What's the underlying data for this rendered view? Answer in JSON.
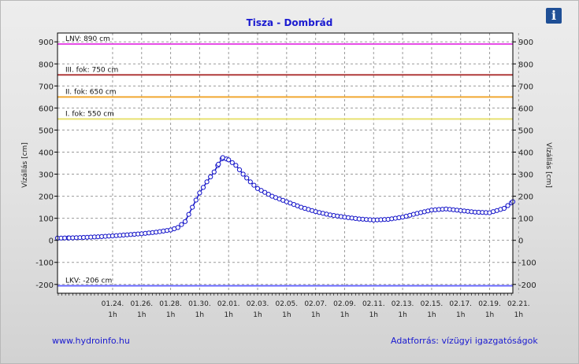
{
  "header": {
    "title": "Tisza - Dombrád",
    "info_icon": "i"
  },
  "footer": {
    "left": "www.hydroinfo.hu",
    "right": "Adatforrás: vízügyi igazgatóságok"
  },
  "chart_data": {
    "type": "line",
    "title": "Tisza - Dombrád",
    "ylabel": "Vízállás [cm]",
    "ylabel_right": "Vízállás [cm]",
    "ylim": [
      -240,
      940
    ],
    "yticks": [
      -200,
      -100,
      0,
      100,
      200,
      300,
      400,
      500,
      600,
      700,
      800,
      900
    ],
    "xlim": [
      -3.8,
      27.6
    ],
    "xticks": [
      {
        "label": "01.24.",
        "sub": "1h"
      },
      {
        "label": "01.26.",
        "sub": "1h"
      },
      {
        "label": "01.28.",
        "sub": "1h"
      },
      {
        "label": "01.30.",
        "sub": "1h"
      },
      {
        "label": "02.01.",
        "sub": "1h"
      },
      {
        "label": "02.03.",
        "sub": "1h"
      },
      {
        "label": "02.05.",
        "sub": "1h"
      },
      {
        "label": "02.07.",
        "sub": "1h"
      },
      {
        "label": "02.09.",
        "sub": "1h"
      },
      {
        "label": "02.11.",
        "sub": "1h"
      },
      {
        "label": "02.13.",
        "sub": "1h"
      },
      {
        "label": "02.15.",
        "sub": "1h"
      },
      {
        "label": "02.17.",
        "sub": "1h"
      },
      {
        "label": "02.19.",
        "sub": "1h"
      },
      {
        "label": "02.21.",
        "sub": "1h"
      }
    ],
    "grid": true,
    "reference_lines": [
      {
        "label": "LNV: 890 cm",
        "value": 890,
        "color": "#e64ce6"
      },
      {
        "label": "III. fok: 750 cm",
        "value": 750,
        "color": "#b03a3a"
      },
      {
        "label": "II. fok: 650 cm",
        "value": 650,
        "color": "#f0a830"
      },
      {
        "label": "I. fok: 550 cm",
        "value": 550,
        "color": "#e8e070"
      },
      {
        "label": "LKV: -206 cm",
        "value": -206,
        "color": "#6a6aff"
      }
    ],
    "series": [
      {
        "color": "#1010c8",
        "points": [
          [
            -3.8,
            10
          ],
          [
            -3,
            11
          ],
          [
            -2,
            13
          ],
          [
            -1,
            16
          ],
          [
            0,
            20
          ],
          [
            1,
            25
          ],
          [
            2,
            30
          ],
          [
            3,
            37
          ],
          [
            4,
            47
          ],
          [
            4.5,
            58
          ],
          [
            5,
            85
          ],
          [
            5.5,
            150
          ],
          [
            6,
            215
          ],
          [
            6.5,
            265
          ],
          [
            7,
            310
          ],
          [
            7.3,
            345
          ],
          [
            7.6,
            375
          ],
          [
            8,
            365
          ],
          [
            8.5,
            340
          ],
          [
            9,
            300
          ],
          [
            9.5,
            265
          ],
          [
            10,
            235
          ],
          [
            11,
            200
          ],
          [
            12,
            175
          ],
          [
            13,
            150
          ],
          [
            14,
            130
          ],
          [
            15,
            115
          ],
          [
            16,
            105
          ],
          [
            17,
            97
          ],
          [
            18,
            92
          ],
          [
            19,
            95
          ],
          [
            20,
            105
          ],
          [
            21,
            122
          ],
          [
            22,
            137
          ],
          [
            23,
            142
          ],
          [
            24,
            135
          ],
          [
            25,
            128
          ],
          [
            26,
            125
          ],
          [
            27,
            145
          ],
          [
            27.6,
            175
          ]
        ]
      }
    ]
  }
}
